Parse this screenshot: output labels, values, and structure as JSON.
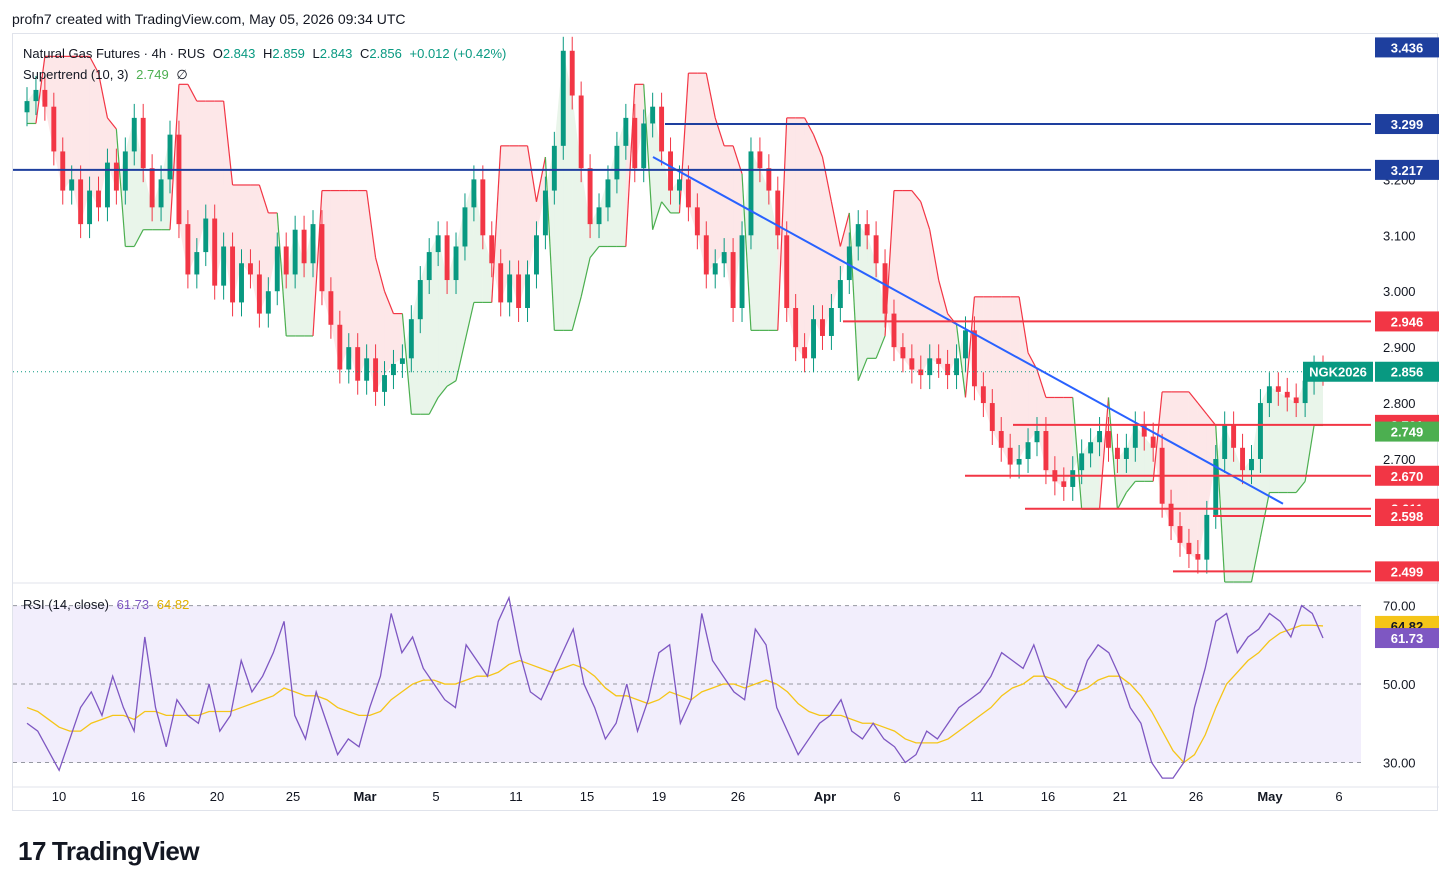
{
  "header": {
    "text": "profn7 created with TradingView.com, May 05, 2026 09:34 UTC"
  },
  "legend": {
    "symbol": "Natural Gas Futures · 4h · RUS",
    "open_label": "O",
    "open": "2.843",
    "high_label": "H",
    "high": "2.859",
    "low_label": "L",
    "low": "2.843",
    "close_label": "C",
    "close": "2.856",
    "change": "+0.012 (+0.42%)",
    "supertrend_label": "Supertrend (10, 3)",
    "supertrend_value": "2.749",
    "supertrend_extra": "∅",
    "rsi_label": "RSI (14, close)",
    "rsi_value": "61.73",
    "rsi_ma_value": "64.82"
  },
  "footer": {
    "logo_text": "TradingView",
    "logo_mark": "17"
  },
  "colors": {
    "up": "#089981",
    "down": "#f23645",
    "blue_level": "#1e3f9e",
    "red_level": "#f23645",
    "trendline": "#2962ff",
    "supertrend_up": "#4caf50",
    "supertrend_down": "#f23645",
    "rsi": "#7e57c2",
    "rsi_ma": "#f5c518",
    "rsi_bg": "#f2eefc"
  },
  "chart_data": [
    {
      "type": "candlestick",
      "title": "Natural Gas Futures · 4h · RUS",
      "x_ticks": [
        "10",
        "16",
        "20",
        "25",
        "Mar",
        "5",
        "11",
        "15",
        "19",
        "26",
        "Apr",
        "6",
        "11",
        "16",
        "21",
        "26",
        "May",
        "6"
      ],
      "y_ticks": [
        "2.700",
        "2.800",
        "2.900",
        "3.000",
        "3.100",
        "3.200"
      ],
      "ylim": [
        2.48,
        3.46
      ],
      "ohlc_path_close": [
        3.34,
        3.36,
        3.33,
        3.25,
        3.18,
        3.2,
        3.12,
        3.18,
        3.15,
        3.23,
        3.18,
        3.25,
        3.31,
        3.22,
        3.15,
        3.2,
        3.28,
        3.12,
        3.03,
        3.07,
        3.13,
        3.01,
        3.08,
        2.98,
        3.05,
        3.03,
        2.96,
        3.0,
        3.08,
        3.03,
        3.11,
        3.05,
        3.12,
        3.0,
        2.94,
        2.86,
        2.9,
        2.84,
        2.88,
        2.82,
        2.85,
        2.87,
        2.88,
        2.95,
        3.02,
        3.07,
        3.1,
        3.02,
        3.08,
        3.15,
        3.2,
        3.1,
        3.05,
        2.98,
        3.03,
        2.97,
        3.03,
        3.1,
        3.18,
        3.26,
        3.43,
        3.35,
        3.22,
        3.12,
        3.15,
        3.2,
        3.26,
        3.31,
        3.22,
        3.3,
        3.33,
        3.25,
        3.18,
        3.2,
        3.15,
        3.1,
        3.03,
        3.05,
        3.07,
        2.97,
        3.1,
        3.25,
        3.22,
        3.18,
        3.1,
        2.97,
        2.9,
        2.88,
        2.95,
        2.92,
        2.97,
        3.02,
        3.08,
        3.12,
        3.1,
        3.05,
        2.96,
        2.9,
        2.88,
        2.86,
        2.85,
        2.88,
        2.87,
        2.85,
        2.88,
        2.93,
        2.83,
        2.8,
        2.75,
        2.72,
        2.69,
        2.7,
        2.73,
        2.75,
        2.68,
        2.66,
        2.65,
        2.68,
        2.71,
        2.73,
        2.75,
        2.72,
        2.7,
        2.72,
        2.76,
        2.74,
        2.72,
        2.62,
        2.58,
        2.55,
        2.53,
        2.52,
        2.6,
        2.7,
        2.76,
        2.72,
        2.68,
        2.7,
        2.8,
        2.83,
        2.82,
        2.81,
        2.8,
        2.84,
        2.86,
        2.856
      ],
      "levels": [
        {
          "value": 3.436,
          "label": "3.436",
          "kind": "last-high-badge"
        },
        {
          "value": 3.299,
          "label": "3.299",
          "kind": "blue-line"
        },
        {
          "value": 3.217,
          "label": "3.217",
          "kind": "blue-line"
        },
        {
          "value": 2.946,
          "label": "2.946",
          "kind": "red-line"
        },
        {
          "value": 2.856,
          "label": "2.856",
          "kind": "last-price",
          "name": "NGK2026"
        },
        {
          "value": 2.761,
          "label": "2.761",
          "kind": "red-line"
        },
        {
          "value": 2.749,
          "label": "2.749",
          "kind": "supertrend"
        },
        {
          "value": 2.67,
          "label": "2.670",
          "kind": "red-line"
        },
        {
          "value": 2.611,
          "label": "2.611",
          "kind": "red-line"
        },
        {
          "value": 2.598,
          "label": "2.598",
          "kind": "red-line"
        },
        {
          "value": 2.499,
          "label": "2.499",
          "kind": "red-line"
        }
      ],
      "trendline": {
        "from": 3.24,
        "to": 2.62
      },
      "series": [
        {
          "name": "Supertrend (10, 3)",
          "last": 2.749
        }
      ]
    },
    {
      "type": "line",
      "title": "RSI (14, close)",
      "y_ticks": [
        "30.00",
        "50.00",
        "70.00"
      ],
      "ylim": [
        24,
        75
      ],
      "series": [
        {
          "name": "RSI",
          "last": 61.73,
          "values": [
            40,
            38,
            33,
            28,
            36,
            44,
            48,
            42,
            52,
            44,
            38,
            62,
            44,
            34,
            46,
            42,
            40,
            50,
            38,
            42,
            56,
            48,
            52,
            58,
            66,
            42,
            36,
            48,
            40,
            32,
            36,
            34,
            44,
            52,
            68,
            58,
            62,
            54,
            50,
            46,
            44,
            60,
            56,
            52,
            66,
            72,
            58,
            48,
            46,
            52,
            58,
            64,
            50,
            44,
            36,
            40,
            50,
            38,
            46,
            58,
            60,
            40,
            46,
            68,
            56,
            52,
            48,
            46,
            64,
            60,
            44,
            38,
            32,
            36,
            40,
            42,
            46,
            38,
            36,
            40,
            36,
            34,
            30,
            32,
            38,
            36,
            40,
            44,
            46,
            48,
            52,
            58,
            56,
            54,
            60,
            52,
            48,
            44,
            48,
            56,
            60,
            58,
            52,
            44,
            40,
            30,
            26,
            26,
            30,
            44,
            54,
            66,
            68,
            58,
            62,
            64,
            68,
            66,
            62,
            70,
            68,
            61.73
          ]
        },
        {
          "name": "RSI-based MA",
          "last": 64.82,
          "values": [
            44,
            43,
            41,
            39,
            38,
            38,
            40,
            41,
            42,
            42,
            41,
            43,
            43,
            42,
            42,
            42,
            42,
            43,
            43,
            43,
            44,
            45,
            46,
            47,
            49,
            48,
            47,
            47,
            46,
            44,
            43,
            42,
            42,
            43,
            46,
            48,
            50,
            51,
            51,
            50,
            50,
            51,
            52,
            52,
            53,
            55,
            56,
            55,
            54,
            53,
            54,
            55,
            54,
            52,
            49,
            47,
            47,
            46,
            45,
            46,
            48,
            47,
            46,
            48,
            49,
            50,
            50,
            49,
            50,
            51,
            50,
            48,
            45,
            43,
            42,
            42,
            42,
            41,
            40,
            40,
            39,
            38,
            36,
            35,
            35,
            35,
            36,
            38,
            40,
            42,
            44,
            47,
            49,
            50,
            52,
            52,
            51,
            49,
            48,
            49,
            51,
            52,
            52,
            50,
            47,
            43,
            38,
            33,
            30,
            32,
            37,
            44,
            50,
            53,
            56,
            58,
            61,
            63,
            64,
            65,
            65,
            64.82
          ]
        }
      ]
    }
  ]
}
